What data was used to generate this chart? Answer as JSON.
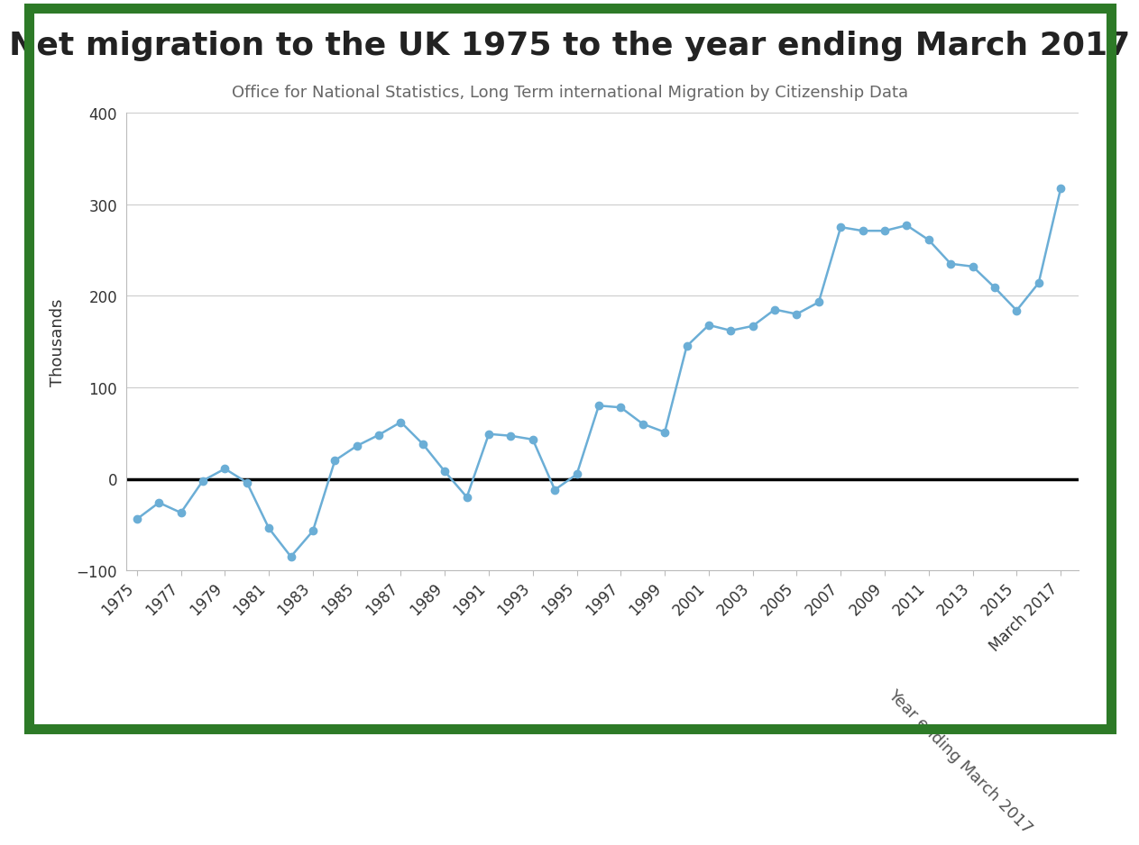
{
  "title": "Net migration to the UK 1975 to the year ending March 2017",
  "subtitle": "Office for National Statistics, Long Term international Migration by Citizenship Data",
  "xlabel": "Year ending March 2017",
  "ylabel": "Thousands",
  "background_color": "#ffffff",
  "border_color": "#2d7a27",
  "line_color": "#6baed6",
  "marker_color": "#6baed6",
  "years": [
    1975,
    1976,
    1977,
    1978,
    1979,
    1980,
    1981,
    1982,
    1983,
    1984,
    1985,
    1986,
    1987,
    1988,
    1989,
    1990,
    1991,
    1992,
    1993,
    1994,
    1995,
    1996,
    1997,
    1998,
    1999,
    2000,
    2001,
    2002,
    2003,
    2004,
    2005,
    2006,
    2007,
    2008,
    2009,
    2010,
    2011,
    2012,
    2013,
    2014,
    2015,
    2016,
    2017
  ],
  "values": [
    -44,
    -26,
    -37,
    -2,
    11,
    -4,
    -54,
    -85,
    -57,
    20,
    36,
    48,
    62,
    38,
    8,
    -20,
    49,
    47,
    43,
    -12,
    5,
    80,
    78,
    60,
    51,
    145,
    168,
    162,
    167,
    185,
    180,
    193,
    275,
    271,
    271,
    277,
    261,
    235,
    232,
    209,
    184,
    214,
    317
  ],
  "ylim": [
    -100,
    400
  ],
  "yticks": [
    -100,
    0,
    100,
    200,
    300,
    400
  ],
  "title_fontsize": 26,
  "subtitle_fontsize": 13,
  "ylabel_fontsize": 13,
  "tick_fontsize": 12,
  "xlabel_fontsize": 13
}
